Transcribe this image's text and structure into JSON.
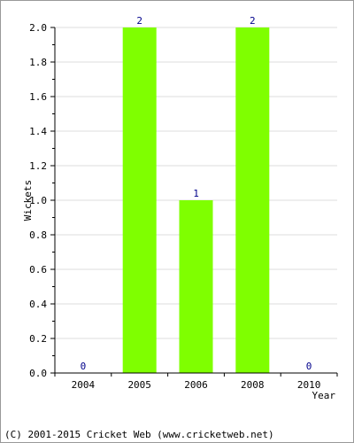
{
  "chart_data": {
    "type": "bar",
    "categories": [
      "2004",
      "2005",
      "2006",
      "2008",
      "2010"
    ],
    "values": [
      0,
      2,
      1,
      2,
      0
    ],
    "data_labels": [
      "0",
      "2",
      "1",
      "2",
      "0"
    ],
    "xlabel": "Year",
    "ylabel": "Wickets",
    "ylim": [
      0,
      2.0
    ],
    "yticks": [
      0.0,
      0.2,
      0.4,
      0.6,
      0.8,
      1.0,
      1.2,
      1.4,
      1.6,
      1.8,
      2.0
    ],
    "ytick_labels": [
      "0.0",
      "0.2",
      "0.4",
      "0.6",
      "0.8",
      "1.0",
      "1.2",
      "1.4",
      "1.6",
      "1.8",
      "2.0"
    ],
    "grid": true,
    "legend": false,
    "colors": {
      "bar": "#7fff00",
      "grid": "#dddddd",
      "axis": "#000000",
      "data_label": "#00008b",
      "border": "#999999"
    }
  },
  "footer": {
    "copyright": "(C) 2001-2015 Cricket Web (www.cricketweb.net)"
  }
}
